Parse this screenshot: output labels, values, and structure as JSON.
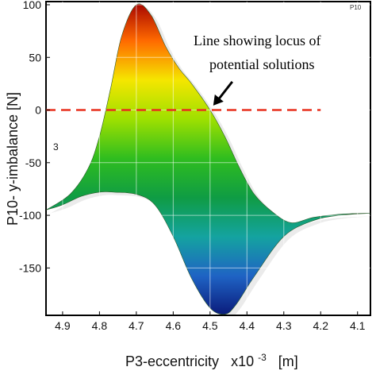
{
  "chart_data": {
    "type": "area",
    "xlabel": "P3-eccentricity",
    "xlabel_scale": "x10",
    "xlabel_exp": "-3",
    "xlabel_unit": "[m]",
    "ylabel": "P10- y-imbalance [N]",
    "corner_label": "P10",
    "stray_label": "3",
    "x_ticks": [
      "4.9",
      "4.8",
      "4.7",
      "4.6",
      "4.5",
      "4.4",
      "4.3",
      "4.2",
      "4.1"
    ],
    "y_ticks": [
      "100",
      "50",
      "0",
      "-50",
      "-100",
      "-150"
    ],
    "xlim": [
      4.945,
      4.065
    ],
    "ylim": [
      -195,
      103
    ],
    "x_reversed": true,
    "grid": true,
    "upper_edge": [
      {
        "x": 4.945,
        "y": -95
      },
      {
        "x": 4.88,
        "y": -80
      },
      {
        "x": 4.83,
        "y": -55
      },
      {
        "x": 4.8,
        "y": -25
      },
      {
        "x": 4.77,
        "y": 20
      },
      {
        "x": 4.74,
        "y": 70
      },
      {
        "x": 4.7,
        "y": 100
      },
      {
        "x": 4.66,
        "y": 90
      },
      {
        "x": 4.62,
        "y": 60
      },
      {
        "x": 4.585,
        "y": 40
      },
      {
        "x": 4.55,
        "y": 25
      },
      {
        "x": 4.5,
        "y": 0
      },
      {
        "x": 4.46,
        "y": -25
      },
      {
        "x": 4.42,
        "y": -55
      },
      {
        "x": 4.38,
        "y": -80
      },
      {
        "x": 4.33,
        "y": -97
      },
      {
        "x": 4.28,
        "y": -107
      },
      {
        "x": 4.22,
        "y": -102
      },
      {
        "x": 4.15,
        "y": -99
      },
      {
        "x": 4.07,
        "y": -98
      }
    ],
    "lower_edge": [
      {
        "x": 4.07,
        "y": -98
      },
      {
        "x": 4.15,
        "y": -100
      },
      {
        "x": 4.22,
        "y": -105
      },
      {
        "x": 4.3,
        "y": -120
      },
      {
        "x": 4.38,
        "y": -158
      },
      {
        "x": 4.43,
        "y": -185
      },
      {
        "x": 4.46,
        "y": -194
      },
      {
        "x": 4.5,
        "y": -188
      },
      {
        "x": 4.55,
        "y": -160
      },
      {
        "x": 4.6,
        "y": -120
      },
      {
        "x": 4.65,
        "y": -90
      },
      {
        "x": 4.7,
        "y": -80
      },
      {
        "x": 4.76,
        "y": -78
      },
      {
        "x": 4.8,
        "y": -78
      },
      {
        "x": 4.85,
        "y": -82
      },
      {
        "x": 4.9,
        "y": -90
      },
      {
        "x": 4.945,
        "y": -95
      }
    ],
    "locus_line": {
      "y": 0,
      "x_from": 4.945,
      "x_to": 4.2,
      "color": "#e8301e",
      "style": "dashed"
    },
    "annotation": {
      "lines": [
        "Line showing locus of",
        "potential solutions"
      ],
      "arrow_to": {
        "x": 4.5,
        "y": 2
      }
    },
    "colorscale": [
      "#a30000",
      "#ff6a00",
      "#f5e600",
      "#9ee000",
      "#2fbd1f",
      "#0f9c44",
      "#14a3a0",
      "#1f63c4",
      "#0a1a7a"
    ],
    "value_range": [
      -195,
      103
    ]
  }
}
